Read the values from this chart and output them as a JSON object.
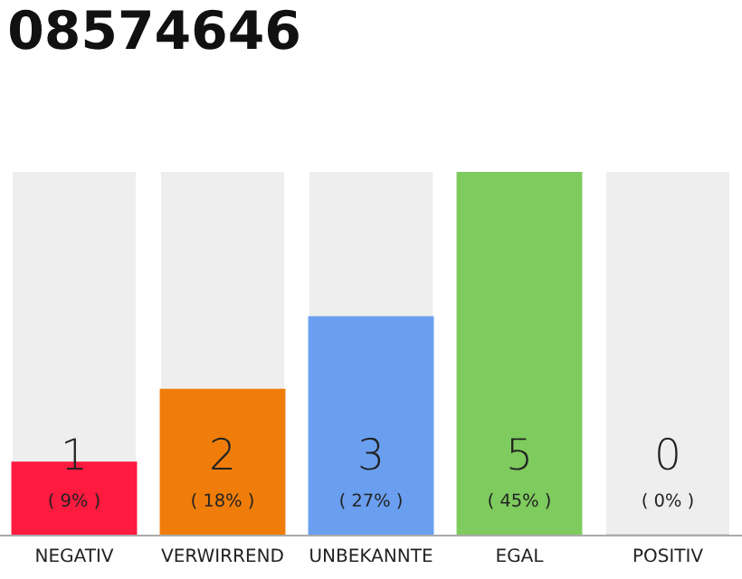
{
  "chart_data": {
    "type": "bar",
    "title": "08574646",
    "categories": [
      "NEGATIV",
      "VERWIRREND",
      "UNBEKANNTE",
      "EGAL",
      "POSITIV"
    ],
    "values": [
      1,
      2,
      3,
      5,
      0
    ],
    "colors": [
      "#ff1a40",
      "#f07d0a",
      "#6a9ff0",
      "#7ecb5e",
      "#bdbdbd"
    ],
    "ylim": [
      0,
      5
    ],
    "data_labels": true,
    "grid": false,
    "legend": false,
    "annotations": [
      {
        "text": "( 9% )",
        "x": "NEGATIV",
        "y": 0
      },
      {
        "text": "( 18% )",
        "x": "VERWIRREND",
        "y": 0
      },
      {
        "text": "( 27% )",
        "x": "UNBEKANNTE",
        "y": 0
      },
      {
        "text": "( 45% )",
        "x": "EGAL",
        "y": 0
      },
      {
        "text": "( 0% )",
        "x": "POSITIV",
        "y": 0
      }
    ]
  }
}
